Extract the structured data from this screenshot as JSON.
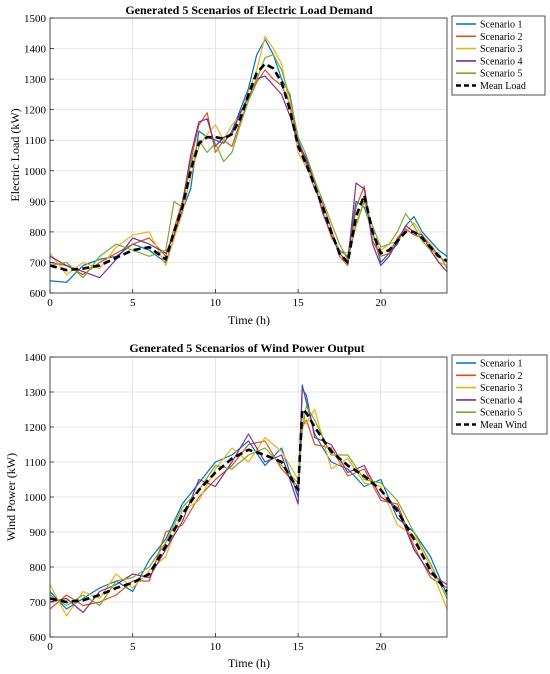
{
  "colors": {
    "scenario_1": "#0072BD",
    "scenario_2": "#D95319",
    "scenario_3": "#EDB120",
    "scenario_4": "#7E2F8E",
    "scenario_5": "#77AC30",
    "mean": "#000000",
    "grid": "#dcdcdc",
    "axis": "#262626"
  },
  "chart_data": [
    {
      "type": "line",
      "title": "Generated 5 Scenarios of Electric Load Demand",
      "xlabel": "Time (h)",
      "ylabel": "Electric Load (kW)",
      "xlim": [
        0,
        24
      ],
      "ylim": [
        600,
        1500
      ],
      "xticks": [
        0,
        5,
        10,
        15,
        20
      ],
      "yticks": [
        600,
        700,
        800,
        900,
        1000,
        1100,
        1200,
        1300,
        1400,
        1500
      ],
      "grid": true,
      "legend_position": "outside-right",
      "x": [
        0,
        1,
        2,
        3,
        4,
        5,
        6,
        7,
        7.5,
        8,
        8.5,
        9,
        9.5,
        10,
        10.5,
        11,
        11.5,
        12,
        12.5,
        13,
        13.5,
        14,
        14.5,
        15,
        15.5,
        16,
        16.5,
        17,
        17.5,
        18,
        18.5,
        19,
        19.5,
        20,
        20.5,
        21,
        21.5,
        22,
        22.5,
        23,
        23.5,
        24
      ],
      "series": [
        {
          "name": "Mean Load",
          "style": "dashed",
          "values": [
            690,
            675,
            680,
            690,
            715,
            740,
            750,
            710,
            800,
            880,
            1000,
            1090,
            1110,
            1110,
            1105,
            1120,
            1170,
            1250,
            1320,
            1350,
            1335,
            1290,
            1200,
            1080,
            1020,
            950,
            880,
            800,
            730,
            700,
            850,
            920,
            800,
            730,
            740,
            770,
            800,
            800,
            780,
            750,
            720,
            705
          ]
        },
        {
          "name": "Scenario 1",
          "values": [
            640,
            635,
            690,
            710,
            720,
            760,
            740,
            700,
            780,
            870,
            940,
            1130,
            1110,
            1100,
            1090,
            1130,
            1200,
            1270,
            1380,
            1430,
            1380,
            1300,
            1250,
            1100,
            1030,
            960,
            860,
            790,
            740,
            720,
            900,
            880,
            800,
            700,
            730,
            760,
            820,
            850,
            800,
            770,
            740,
            720
          ]
        },
        {
          "name": "Scenario 2",
          "values": [
            700,
            690,
            660,
            700,
            730,
            760,
            780,
            720,
            810,
            900,
            1030,
            1150,
            1190,
            1060,
            1100,
            1080,
            1160,
            1230,
            1290,
            1330,
            1300,
            1280,
            1220,
            1090,
            1020,
            940,
            890,
            810,
            720,
            690,
            880,
            950,
            770,
            720,
            730,
            780,
            810,
            790,
            780,
            760,
            720,
            700
          ]
        },
        {
          "name": "Scenario 3",
          "values": [
            730,
            660,
            700,
            680,
            750,
            790,
            800,
            690,
            780,
            860,
            980,
            1080,
            1120,
            1150,
            1100,
            1150,
            1180,
            1260,
            1330,
            1440,
            1400,
            1350,
            1210,
            1060,
            1010,
            960,
            870,
            780,
            740,
            730,
            830,
            900,
            780,
            740,
            760,
            770,
            800,
            830,
            790,
            760,
            700,
            690
          ]
        },
        {
          "name": "Scenario 4",
          "values": [
            720,
            690,
            670,
            650,
            710,
            780,
            760,
            730,
            790,
            890,
            1050,
            1160,
            1170,
            1080,
            1110,
            1120,
            1190,
            1240,
            1300,
            1310,
            1280,
            1250,
            1180,
            1090,
            1040,
            960,
            860,
            790,
            730,
            700,
            960,
            940,
            760,
            690,
            720,
            770,
            820,
            800,
            790,
            740,
            700,
            670
          ]
        },
        {
          "name": "Scenario 5",
          "values": [
            690,
            700,
            650,
            720,
            760,
            740,
            720,
            740,
            900,
            880,
            1020,
            1100,
            1060,
            1090,
            1030,
            1060,
            1150,
            1230,
            1300,
            1370,
            1380,
            1330,
            1240,
            1110,
            1050,
            970,
            900,
            830,
            760,
            710,
            820,
            900,
            820,
            750,
            760,
            800,
            860,
            820,
            770,
            740,
            730,
            680
          ]
        }
      ]
    },
    {
      "type": "line",
      "title": "Generated 5 Scenarios of Wind Power Output",
      "xlabel": "Time (h)",
      "ylabel": "Wind Power (kW)",
      "xlim": [
        0,
        24
      ],
      "ylim": [
        600,
        1400
      ],
      "xticks": [
        0,
        5,
        10,
        15,
        20
      ],
      "yticks": [
        600,
        700,
        800,
        900,
        1000,
        1100,
        1200,
        1300,
        1400
      ],
      "grid": true,
      "legend_position": "outside-right",
      "x": [
        0,
        1,
        2,
        3,
        4,
        5,
        6,
        7,
        8,
        9,
        10,
        11,
        12,
        13,
        14,
        15,
        15.25,
        15.5,
        16,
        17,
        18,
        19,
        20,
        21,
        22,
        23,
        24
      ],
      "series": [
        {
          "name": "Mean Wind",
          "style": "dashed",
          "values": [
            710,
            700,
            705,
            720,
            740,
            755,
            780,
            860,
            950,
            1020,
            1070,
            1110,
            1135,
            1120,
            1100,
            1020,
            1250,
            1240,
            1200,
            1130,
            1090,
            1060,
            1020,
            960,
            880,
            790,
            730
          ]
        },
        {
          "name": "Scenario 1",
          "values": [
            730,
            680,
            710,
            740,
            760,
            730,
            820,
            880,
            980,
            1040,
            1100,
            1120,
            1160,
            1090,
            1140,
            1000,
            1320,
            1270,
            1180,
            1100,
            1080,
            1030,
            1050,
            940,
            900,
            830,
            720
          ]
        },
        {
          "name": "Scenario 2",
          "values": [
            680,
            720,
            690,
            700,
            720,
            760,
            760,
            900,
            920,
            1000,
            1050,
            1090,
            1150,
            1160,
            1080,
            1030,
            1200,
            1220,
            1150,
            1140,
            1060,
            1080,
            990,
            980,
            860,
            770,
            740
          ]
        },
        {
          "name": "Scenario 3",
          "values": [
            750,
            660,
            730,
            710,
            780,
            740,
            790,
            830,
            960,
            990,
            1080,
            1140,
            1100,
            1170,
            1130,
            1050,
            1230,
            1210,
            1250,
            1080,
            1110,
            1040,
            1030,
            920,
            890,
            800,
            680
          ]
        },
        {
          "name": "Scenario 4",
          "values": [
            700,
            710,
            670,
            730,
            750,
            780,
            770,
            850,
            930,
            1050,
            1030,
            1100,
            1180,
            1100,
            1120,
            980,
            1310,
            1290,
            1170,
            1150,
            1070,
            1090,
            1000,
            970,
            850,
            780,
            750
          ]
        },
        {
          "name": "Scenario 5",
          "values": [
            720,
            690,
            720,
            690,
            760,
            770,
            800,
            870,
            970,
            1020,
            1090,
            1080,
            1120,
            1140,
            1090,
            1040,
            1190,
            1260,
            1220,
            1120,
            1120,
            1050,
            1040,
            990,
            900,
            810,
            710
          ]
        }
      ]
    }
  ]
}
